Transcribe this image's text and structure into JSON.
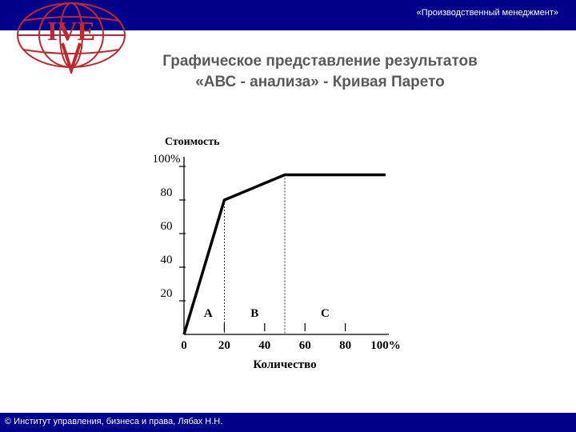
{
  "header": {
    "text": "«Производственный менеджмент»"
  },
  "title": {
    "line1": "Графическое представление результатов",
    "line2": "«АВС - анализа» -  Кривая Парето"
  },
  "footer": {
    "text": "© Институт управления, бизнеса и права, Лябах Н.Н."
  },
  "logo": {
    "letters": "IVE"
  },
  "colors": {
    "bar": "#00008b",
    "title": "#5a5a5a",
    "curve": "#000000",
    "logo": "#c0282d"
  },
  "chart_data": {
    "type": "line",
    "ylabel": "Стоимость",
    "xlabel": "Количество",
    "xlim": [
      0,
      100
    ],
    "ylim": [
      0,
      100
    ],
    "x_ticks": [
      {
        "value": 0,
        "label": "0"
      },
      {
        "value": 20,
        "label": "20"
      },
      {
        "value": 40,
        "label": "40"
      },
      {
        "value": 60,
        "label": "60"
      },
      {
        "value": 80,
        "label": "80"
      },
      {
        "value": 100,
        "label": "100%"
      }
    ],
    "y_ticks": [
      {
        "value": 20,
        "label": "20"
      },
      {
        "value": 40,
        "label": "40"
      },
      {
        "value": 60,
        "label": "60"
      },
      {
        "value": 80,
        "label": "80"
      },
      {
        "value": 100,
        "label": "100%"
      }
    ],
    "series": [
      {
        "points": [
          {
            "x": 0,
            "y": 0
          },
          {
            "x": 20,
            "y": 80
          },
          {
            "x": 50,
            "y": 95
          },
          {
            "x": 100,
            "y": 95
          }
        ]
      }
    ],
    "zones": [
      {
        "label": "А",
        "x": 12
      },
      {
        "label": "В",
        "x": 35
      },
      {
        "label": "С",
        "x": 70
      }
    ],
    "boundaries": [
      20,
      50
    ]
  }
}
